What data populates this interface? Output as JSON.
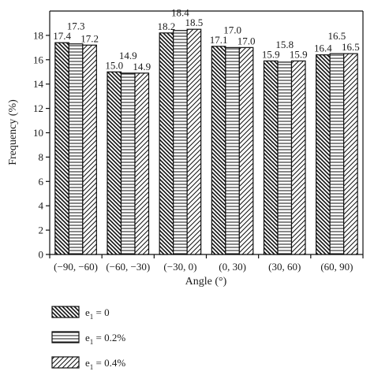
{
  "chart_data": {
    "type": "bar",
    "xlabel": "Angle (°)",
    "ylabel": "Frequency (%)",
    "ylim": [
      0,
      20
    ],
    "yticks": [
      0,
      2,
      4,
      6,
      8,
      10,
      12,
      14,
      16,
      18
    ],
    "categories": [
      "(−90, −60)",
      "(−60, −30)",
      "(−30, 0)",
      "(0, 30)",
      "(30, 60)",
      "(60, 90)"
    ],
    "series": [
      {
        "name": "e1 = 0",
        "legend_main": "e",
        "legend_sub": "1",
        "legend_rest": " = 0",
        "pattern": "back-diagonal-hatch",
        "values": [
          17.4,
          15.0,
          18.2,
          17.1,
          15.9,
          16.4
        ]
      },
      {
        "name": "e1 = 0.2%",
        "legend_main": "e",
        "legend_sub": "1",
        "legend_rest": " = 0.2%",
        "pattern": "horizontal-lines",
        "values": [
          17.3,
          14.9,
          18.4,
          17.0,
          15.8,
          16.5
        ]
      },
      {
        "name": "e1 = 0.4%",
        "legend_main": "e",
        "legend_sub": "1",
        "legend_rest": " = 0.4%",
        "pattern": "forward-diagonal-hatch",
        "values": [
          17.2,
          14.9,
          18.5,
          17.0,
          15.9,
          16.5
        ]
      }
    ],
    "value_labels": [
      [
        "17.4",
        "15.0",
        "18.2",
        "17.1",
        "15.9",
        "16.4"
      ],
      [
        "17.3",
        "14.9",
        "18.4",
        "17.0",
        "15.8",
        "16.5"
      ],
      [
        "17.2",
        "14.9",
        "18.5",
        "17.0",
        "15.9",
        "16.5"
      ]
    ],
    "legend_position": "bottom-left",
    "grid": false
  }
}
